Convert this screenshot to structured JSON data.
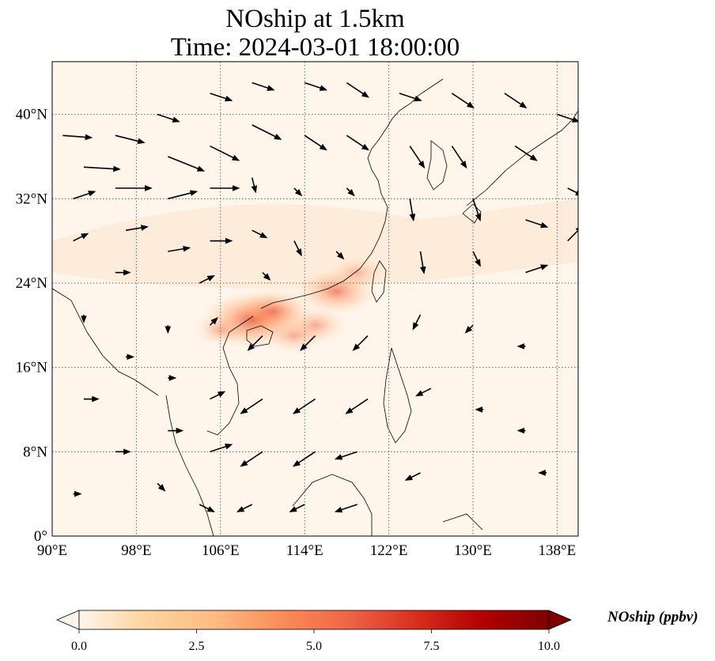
{
  "title": {
    "line1": "NOship at 1.5km",
    "line2": "Time: 2024-03-01 18:00:00"
  },
  "map": {
    "lon_range": [
      90,
      140
    ],
    "lat_range": [
      0,
      45
    ],
    "lon_ticks": [
      {
        "value": 90,
        "label": "90°E"
      },
      {
        "value": 98,
        "label": "98°E"
      },
      {
        "value": 106,
        "label": "106°E"
      },
      {
        "value": 114,
        "label": "114°E"
      },
      {
        "value": 122,
        "label": "122°E"
      },
      {
        "value": 130,
        "label": "130°E"
      },
      {
        "value": 138,
        "label": "138°E"
      }
    ],
    "lat_ticks": [
      {
        "value": 0,
        "label": "0°"
      },
      {
        "value": 8,
        "label": "8°N"
      },
      {
        "value": 16,
        "label": "16°N"
      },
      {
        "value": 24,
        "label": "24°N"
      },
      {
        "value": 32,
        "label": "32°N"
      },
      {
        "value": 40,
        "label": "40°N"
      }
    ],
    "grid": "dotted",
    "field_color_low": "#fff5eb",
    "field_color_high": "#7f0000"
  },
  "colorbar": {
    "label": "NOship (ppbv)",
    "min": 0,
    "max": 10,
    "ticks": [
      {
        "value": 0,
        "label": "0.0"
      },
      {
        "value": 2.5,
        "label": "2.5"
      },
      {
        "value": 5,
        "label": "5.0"
      },
      {
        "value": 7.5,
        "label": "7.5"
      },
      {
        "value": 10,
        "label": "10.0"
      }
    ],
    "colors": [
      "#fff5eb",
      "#fdd49e",
      "#fdbb84",
      "#fc8d59",
      "#ef6548",
      "#d7301f",
      "#b30000",
      "#7f0000"
    ],
    "extend": "both"
  },
  "wind_arrows": [
    {
      "lon": 91,
      "lat": 38,
      "u": 4,
      "v": -0.3
    },
    {
      "lon": 93,
      "lat": 35,
      "u": 5,
      "v": -0.3
    },
    {
      "lon": 92,
      "lat": 32,
      "u": 3,
      "v": 1
    },
    {
      "lon": 92,
      "lat": 28,
      "u": 2,
      "v": 1
    },
    {
      "lon": 96,
      "lat": 38,
      "u": 4,
      "v": -1
    },
    {
      "lon": 96,
      "lat": 33,
      "u": 5,
      "v": 0
    },
    {
      "lon": 97,
      "lat": 29,
      "u": 3,
      "v": 0.5
    },
    {
      "lon": 96,
      "lat": 25,
      "u": 2,
      "v": 0
    },
    {
      "lon": 100,
      "lat": 40,
      "u": 3,
      "v": -1
    },
    {
      "lon": 101,
      "lat": 36,
      "u": 5,
      "v": -2
    },
    {
      "lon": 101,
      "lat": 32,
      "u": 4,
      "v": 1
    },
    {
      "lon": 101,
      "lat": 27,
      "u": 3,
      "v": 0.5
    },
    {
      "lon": 105,
      "lat": 42,
      "u": 3,
      "v": -1
    },
    {
      "lon": 105,
      "lat": 37,
      "u": 4,
      "v": -2
    },
    {
      "lon": 105,
      "lat": 33,
      "u": 4,
      "v": 0
    },
    {
      "lon": 105,
      "lat": 28,
      "u": 3,
      "v": 0
    },
    {
      "lon": 104,
      "lat": 24,
      "u": 2,
      "v": 1
    },
    {
      "lon": 109,
      "lat": 43,
      "u": 3,
      "v": -1
    },
    {
      "lon": 109,
      "lat": 39,
      "u": 4,
      "v": -2
    },
    {
      "lon": 109,
      "lat": 34,
      "u": 0.5,
      "v": -2
    },
    {
      "lon": 109,
      "lat": 29,
      "u": 2,
      "v": -1
    },
    {
      "lon": 110,
      "lat": 25,
      "u": 1,
      "v": -1
    },
    {
      "lon": 114,
      "lat": 43,
      "u": 3,
      "v": -1
    },
    {
      "lon": 114,
      "lat": 38,
      "u": 3,
      "v": -2
    },
    {
      "lon": 113,
      "lat": 33,
      "u": 1,
      "v": -1
    },
    {
      "lon": 113,
      "lat": 28,
      "u": 1,
      "v": -2
    },
    {
      "lon": 118,
      "lat": 43,
      "u": 3,
      "v": -2
    },
    {
      "lon": 118,
      "lat": 38,
      "u": 3,
      "v": -2
    },
    {
      "lon": 118,
      "lat": 33,
      "u": 1,
      "v": -1
    },
    {
      "lon": 117,
      "lat": 27,
      "u": 1,
      "v": -1
    },
    {
      "lon": 123,
      "lat": 42,
      "u": 3,
      "v": -1
    },
    {
      "lon": 124,
      "lat": 37,
      "u": 2,
      "v": -3
    },
    {
      "lon": 124,
      "lat": 32,
      "u": 0.5,
      "v": -3
    },
    {
      "lon": 125,
      "lat": 27,
      "u": 0.5,
      "v": -3
    },
    {
      "lon": 128,
      "lat": 42,
      "u": 3,
      "v": -2
    },
    {
      "lon": 128,
      "lat": 37,
      "u": 2,
      "v": -3
    },
    {
      "lon": 130,
      "lat": 32,
      "u": 1,
      "v": -3
    },
    {
      "lon": 130,
      "lat": 27,
      "u": 1,
      "v": -2
    },
    {
      "lon": 133,
      "lat": 42,
      "u": 3,
      "v": -2
    },
    {
      "lon": 134,
      "lat": 37,
      "u": 3,
      "v": -2
    },
    {
      "lon": 135,
      "lat": 30,
      "u": 3,
      "v": -1
    },
    {
      "lon": 135,
      "lat": 25,
      "u": 3,
      "v": 1
    },
    {
      "lon": 138,
      "lat": 40,
      "u": 3,
      "v": -1
    },
    {
      "lon": 139,
      "lat": 33,
      "u": 2,
      "v": -1
    },
    {
      "lon": 139,
      "lat": 28,
      "u": 2,
      "v": 2
    },
    {
      "lon": 93,
      "lat": 21,
      "u": 0,
      "v": -1
    },
    {
      "lon": 97,
      "lat": 17,
      "u": 1,
      "v": 0
    },
    {
      "lon": 93,
      "lat": 13,
      "u": 2,
      "v": 0
    },
    {
      "lon": 96,
      "lat": 8,
      "u": 2,
      "v": 0
    },
    {
      "lon": 92,
      "lat": 4,
      "u": 1,
      "v": 0
    },
    {
      "lon": 101,
      "lat": 20,
      "u": 0,
      "v": -1
    },
    {
      "lon": 101,
      "lat": 15,
      "u": 1,
      "v": 0
    },
    {
      "lon": 101,
      "lat": 10,
      "u": 2,
      "v": 0
    },
    {
      "lon": 100,
      "lat": 5,
      "u": 1,
      "v": -1
    },
    {
      "lon": 105,
      "lat": 20,
      "u": 1,
      "v": 1
    },
    {
      "lon": 105,
      "lat": 13,
      "u": 2,
      "v": 1
    },
    {
      "lon": 105,
      "lat": 8,
      "u": 3,
      "v": 1
    },
    {
      "lon": 104,
      "lat": 3,
      "u": 2,
      "v": -1
    },
    {
      "lon": 110,
      "lat": 19,
      "u": -2,
      "v": -2
    },
    {
      "lon": 110,
      "lat": 13,
      "u": -3,
      "v": -2
    },
    {
      "lon": 110,
      "lat": 8,
      "u": -3,
      "v": -2
    },
    {
      "lon": 109,
      "lat": 3,
      "u": -2,
      "v": -1
    },
    {
      "lon": 115,
      "lat": 19,
      "u": -2,
      "v": -2
    },
    {
      "lon": 115,
      "lat": 13,
      "u": -3,
      "v": -2
    },
    {
      "lon": 115,
      "lat": 8,
      "u": -3,
      "v": -2
    },
    {
      "lon": 114,
      "lat": 3,
      "u": -2,
      "v": -1
    },
    {
      "lon": 120,
      "lat": 19,
      "u": -2,
      "v": -2
    },
    {
      "lon": 120,
      "lat": 13,
      "u": -3,
      "v": -2
    },
    {
      "lon": 119,
      "lat": 8,
      "u": -3,
      "v": -1
    },
    {
      "lon": 119,
      "lat": 3,
      "u": -3,
      "v": -1
    },
    {
      "lon": 125,
      "lat": 21,
      "u": -1,
      "v": -2
    },
    {
      "lon": 126,
      "lat": 14,
      "u": -2,
      "v": -1
    },
    {
      "lon": 125,
      "lat": 6,
      "u": -2,
      "v": -1
    },
    {
      "lon": 130,
      "lat": 20,
      "u": -1,
      "v": -1
    },
    {
      "lon": 131,
      "lat": 12,
      "u": -1,
      "v": 0
    },
    {
      "lon": 135,
      "lat": 18,
      "u": -1,
      "v": 0
    },
    {
      "lon": 135,
      "lat": 10,
      "u": -1,
      "v": 0
    },
    {
      "lon": 137,
      "lat": 6,
      "u": -1,
      "v": 0
    }
  ],
  "hotspots": [
    {
      "lon": 109,
      "lat": 20.5,
      "value": 6.0
    },
    {
      "lon": 111,
      "lat": 21.3,
      "value": 4.5
    },
    {
      "lon": 117,
      "lat": 23.2,
      "value": 4.5
    },
    {
      "lon": 115,
      "lat": 20,
      "value": 3.2
    },
    {
      "lon": 119,
      "lat": 25,
      "value": 2.5
    },
    {
      "lon": 113,
      "lat": 19,
      "value": 3
    },
    {
      "lon": 106,
      "lat": 19.5,
      "value": 2.5
    }
  ]
}
